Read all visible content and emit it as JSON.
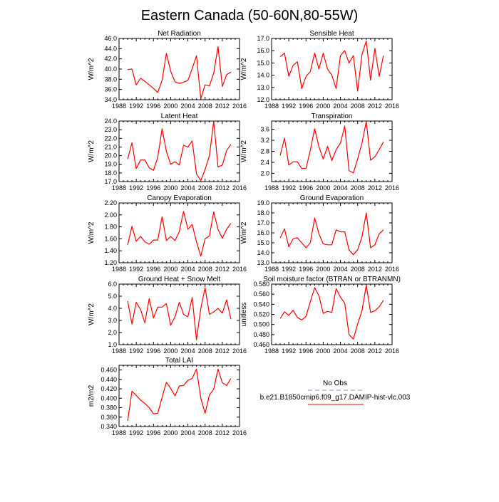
{
  "title": "Eastern Canada (50-60N,80-55W)",
  "colors": {
    "model": "#ff0000",
    "obs": "#8c8cd9"
  },
  "legend": {
    "obs_label": "No Obs",
    "model_label": "b.e21.B1850cmip6.f09_g17.DAMIP-hist-vlc.003"
  },
  "chart_data": [
    {
      "type": "line",
      "title": "Net Radiation",
      "ylabel": "W/m^2",
      "xlim": [
        1988,
        2016
      ],
      "ylim": [
        34,
        46
      ],
      "xticks": [
        1988,
        1992,
        1996,
        2000,
        2004,
        2008,
        2012,
        2016
      ],
      "xtick_labels": [
        "1988",
        "1992",
        "1996",
        "2000",
        "2004",
        "2008",
        "2012",
        "2016"
      ],
      "yticks": [
        34,
        36,
        38,
        40,
        42,
        44,
        46
      ],
      "ytick_labels": [
        "34.0",
        "36.0",
        "38.0",
        "40.0",
        "42.0",
        "44.0",
        "46.0"
      ],
      "x": [
        1990,
        1991,
        1992,
        1993,
        1994,
        1995,
        1996,
        1997,
        1998,
        1999,
        2000,
        2001,
        2002,
        2003,
        2004,
        2005,
        2006,
        2007,
        2008,
        2009,
        2010,
        2011,
        2012,
        2013,
        2014
      ],
      "series": [
        {
          "values": [
            39.9,
            40.0,
            36.9,
            38.2,
            37.6,
            36.9,
            36.2,
            35.4,
            37.8,
            43.1,
            39.6,
            37.5,
            37.2,
            37.4,
            37.8,
            40.1,
            42.6,
            34.2,
            36.9,
            36.7,
            39.2,
            44.4,
            36.6,
            38.9,
            39.4
          ]
        }
      ]
    },
    {
      "type": "line",
      "title": "Sensible Heat",
      "ylabel": "W/m^2",
      "xlim": [
        1988,
        2016
      ],
      "ylim": [
        12,
        17
      ],
      "xticks": [
        1988,
        1992,
        1996,
        2000,
        2004,
        2008,
        2012,
        2016
      ],
      "xtick_labels": [
        "1988",
        "1992",
        "1996",
        "2000",
        "2004",
        "2008",
        "2012",
        "2016"
      ],
      "yticks": [
        12,
        13,
        14,
        15,
        16,
        17
      ],
      "ytick_labels": [
        "12.0",
        "13.0",
        "14.0",
        "15.0",
        "16.0",
        "17.0"
      ],
      "x": [
        1990,
        1991,
        1992,
        1993,
        1994,
        1995,
        1996,
        1997,
        1998,
        1999,
        2000,
        2001,
        2002,
        2003,
        2004,
        2005,
        2006,
        2007,
        2008,
        2009,
        2010,
        2011,
        2012,
        2013,
        2014
      ],
      "series": [
        {
          "values": [
            15.5,
            15.8,
            13.9,
            14.8,
            15.1,
            12.9,
            13.9,
            14.3,
            15.8,
            14.5,
            15.8,
            14.5,
            14.0,
            12.9,
            15.6,
            16.0,
            15.0,
            15.6,
            12.7,
            15.7,
            16.8,
            13.6,
            16.2,
            13.9,
            15.6
          ]
        }
      ]
    },
    {
      "type": "line",
      "title": "Latent Heat",
      "ylabel": "W/m^2",
      "xlim": [
        1988,
        2016
      ],
      "ylim": [
        17,
        24
      ],
      "xticks": [
        1988,
        1992,
        1996,
        2000,
        2004,
        2008,
        2012,
        2016
      ],
      "xtick_labels": [
        "1988",
        "1992",
        "1996",
        "2000",
        "2004",
        "2008",
        "2012",
        "2016"
      ],
      "yticks": [
        17,
        18,
        19,
        20,
        21,
        22,
        23,
        24
      ],
      "ytick_labels": [
        "17.0",
        "18.0",
        "19.0",
        "20.0",
        "21.0",
        "22.0",
        "23.0",
        "24.0"
      ],
      "x": [
        1990,
        1991,
        1992,
        1993,
        1994,
        1995,
        1996,
        1997,
        1998,
        1999,
        2000,
        2001,
        2002,
        2003,
        2004,
        2005,
        2006,
        2007,
        2008,
        2009,
        2010,
        2011,
        2012,
        2013,
        2014
      ],
      "series": [
        {
          "values": [
            19.6,
            21.5,
            18.5,
            19.5,
            19.5,
            18.6,
            18.3,
            19.8,
            23.1,
            20.5,
            19.0,
            19.3,
            18.9,
            21.2,
            21.0,
            21.7,
            17.9,
            17.1,
            18.4,
            20.0,
            24.0,
            18.7,
            18.9,
            20.6,
            21.3
          ]
        }
      ]
    },
    {
      "type": "line",
      "title": "Transpiration",
      "ylabel": "W/m^2",
      "xlim": [
        1988,
        2016
      ],
      "ylim": [
        1.7,
        3.9
      ],
      "xticks": [
        1988,
        1992,
        1996,
        2000,
        2004,
        2008,
        2012,
        2016
      ],
      "xtick_labels": [
        "1988",
        "1992",
        "1996",
        "2000",
        "2004",
        "2008",
        "2012",
        "2016"
      ],
      "yticks": [
        2.0,
        2.4,
        2.8,
        3.2,
        3.6
      ],
      "ytick_labels": [
        "2.0",
        "2.4",
        "2.8",
        "3.2",
        "3.6"
      ],
      "x": [
        1990,
        1991,
        1992,
        1993,
        1994,
        1995,
        1996,
        1997,
        1998,
        1999,
        2000,
        2001,
        2002,
        2003,
        2004,
        2005,
        2006,
        2007,
        2008,
        2009,
        2010,
        2011,
        2012,
        2013,
        2014
      ],
      "series": [
        {
          "values": [
            2.65,
            3.28,
            2.3,
            2.42,
            2.42,
            2.17,
            2.18,
            2.84,
            3.62,
            2.97,
            2.52,
            2.98,
            2.46,
            2.86,
            3.1,
            3.72,
            2.1,
            2.01,
            2.52,
            3.1,
            3.88,
            2.48,
            2.6,
            2.86,
            3.14
          ]
        }
      ]
    },
    {
      "type": "line",
      "title": "Canopy Evaporation",
      "ylabel": "W/m^2",
      "xlim": [
        1988,
        2016
      ],
      "ylim": [
        1.2,
        2.2
      ],
      "xticks": [
        1988,
        1992,
        1996,
        2000,
        2004,
        2008,
        2012,
        2016
      ],
      "xtick_labels": [
        "1988",
        "1992",
        "1996",
        "2000",
        "2004",
        "2008",
        "2012",
        "2016"
      ],
      "yticks": [
        1.2,
        1.4,
        1.6,
        1.8,
        2.0,
        2.2
      ],
      "ytick_labels": [
        "1.20",
        "1.40",
        "1.60",
        "1.80",
        "2.00",
        "2.20"
      ],
      "x": [
        1990,
        1991,
        1992,
        1993,
        1994,
        1995,
        1996,
        1997,
        1998,
        1999,
        2000,
        2001,
        2002,
        2003,
        2004,
        2005,
        2006,
        2007,
        2008,
        2009,
        2010,
        2011,
        2012,
        2013,
        2014
      ],
      "series": [
        {
          "values": [
            1.5,
            1.81,
            1.56,
            1.64,
            1.55,
            1.51,
            1.58,
            1.58,
            1.97,
            1.57,
            1.64,
            1.57,
            1.72,
            2.06,
            1.76,
            1.84,
            1.55,
            1.31,
            1.6,
            1.65,
            2.05,
            1.76,
            1.61,
            1.76,
            1.86
          ]
        }
      ]
    },
    {
      "type": "line",
      "title": "Ground Evaporation",
      "ylabel": "W/m^2",
      "xlim": [
        1988,
        2016
      ],
      "ylim": [
        13,
        19
      ],
      "xticks": [
        1988,
        1992,
        1996,
        2000,
        2004,
        2008,
        2012,
        2016
      ],
      "xtick_labels": [
        "1988",
        "1992",
        "1996",
        "2000",
        "2004",
        "2008",
        "2012",
        "2016"
      ],
      "yticks": [
        13,
        14,
        15,
        16,
        17,
        18,
        19
      ],
      "ytick_labels": [
        "13.0",
        "14.0",
        "15.0",
        "16.0",
        "17.0",
        "18.0",
        "19.0"
      ],
      "x": [
        1990,
        1991,
        1992,
        1993,
        1994,
        1995,
        1996,
        1997,
        1998,
        1999,
        2000,
        2001,
        2002,
        2003,
        2004,
        2005,
        2006,
        2007,
        2008,
        2009,
        2010,
        2011,
        2012,
        2013,
        2014
      ],
      "series": [
        {
          "values": [
            15.5,
            16.4,
            14.6,
            15.4,
            15.5,
            15.0,
            14.5,
            15.0,
            17.5,
            15.9,
            14.9,
            14.8,
            14.8,
            16.3,
            16.1,
            16.1,
            14.3,
            13.8,
            14.3,
            15.6,
            18.0,
            14.5,
            14.8,
            15.9,
            16.3
          ]
        }
      ]
    },
    {
      "type": "line",
      "title": "Ground Heat + Snow Melt",
      "ylabel": "W/m^2",
      "xlim": [
        1988,
        2016
      ],
      "ylim": [
        1,
        6
      ],
      "xticks": [
        1988,
        1992,
        1996,
        2000,
        2004,
        2008,
        2012,
        2016
      ],
      "xtick_labels": [
        "1988",
        "1992",
        "1996",
        "2000",
        "2004",
        "2008",
        "2012",
        "2016"
      ],
      "yticks": [
        1,
        2,
        3,
        4,
        5,
        6
      ],
      "ytick_labels": [
        "1.0",
        "2.0",
        "3.0",
        "4.0",
        "5.0",
        "6.0"
      ],
      "x": [
        1990,
        1991,
        1992,
        1993,
        1994,
        1995,
        1996,
        1997,
        1998,
        1999,
        2000,
        2001,
        2002,
        2003,
        2004,
        2005,
        2006,
        2007,
        2008,
        2009,
        2010,
        2011,
        2012,
        2013,
        2014
      ],
      "series": [
        {
          "values": [
            4.6,
            2.7,
            4.5,
            3.9,
            2.8,
            4.8,
            3.2,
            4.1,
            4.1,
            4.4,
            2.6,
            3.3,
            4.5,
            3.5,
            3.3,
            4.9,
            1.4,
            4.0,
            5.7,
            3.5,
            3.7,
            4.0,
            3.6,
            4.7,
            3.1
          ]
        }
      ]
    },
    {
      "type": "line",
      "title": "Soil moisture factor (BTRAN or BTRANMN)",
      "ylabel": "unitless",
      "xlim": [
        1988,
        2016
      ],
      "ylim": [
        0.46,
        0.58
      ],
      "xticks": [
        1988,
        1992,
        1996,
        2000,
        2004,
        2008,
        2012,
        2016
      ],
      "xtick_labels": [
        "1988",
        "1992",
        "1996",
        "2000",
        "2004",
        "2008",
        "2012",
        "2016"
      ],
      "yticks": [
        0.46,
        0.48,
        0.5,
        0.52,
        0.54,
        0.56,
        0.58
      ],
      "ytick_labels": [
        "0.460",
        "0.480",
        "0.500",
        "0.520",
        "0.540",
        "0.560",
        "0.580"
      ],
      "x": [
        1990,
        1991,
        1992,
        1993,
        1994,
        1995,
        1996,
        1997,
        1998,
        1999,
        2000,
        2001,
        2002,
        2003,
        2004,
        2005,
        2006,
        2007,
        2008,
        2009,
        2010,
        2011,
        2012,
        2013,
        2014
      ],
      "series": [
        {
          "values": [
            0.512,
            0.525,
            0.518,
            0.528,
            0.514,
            0.509,
            0.516,
            0.545,
            0.573,
            0.557,
            0.522,
            0.526,
            0.524,
            0.571,
            0.554,
            0.542,
            0.48,
            0.471,
            0.501,
            0.527,
            0.578,
            0.524,
            0.527,
            0.535,
            0.548
          ]
        }
      ]
    },
    {
      "type": "line",
      "title": "Total LAI",
      "ylabel": "m2/m2",
      "xlim": [
        1988,
        2016
      ],
      "ylim": [
        0.34,
        0.47
      ],
      "xticks": [
        1988,
        1992,
        1996,
        2000,
        2004,
        2008,
        2012,
        2016
      ],
      "xtick_labels": [
        "1988",
        "1992",
        "1996",
        "2000",
        "2004",
        "2008",
        "2012",
        "2016"
      ],
      "yticks": [
        0.34,
        0.36,
        0.38,
        0.4,
        0.42,
        0.44,
        0.46
      ],
      "ytick_labels": [
        "0.340",
        "0.360",
        "0.380",
        "0.400",
        "0.420",
        "0.440",
        "0.460"
      ],
      "x": [
        1990,
        1991,
        1992,
        1993,
        1994,
        1995,
        1996,
        1997,
        1998,
        1999,
        2000,
        2001,
        2002,
        2003,
        2004,
        2005,
        2006,
        2007,
        2008,
        2009,
        2010,
        2011,
        2012,
        2013,
        2014
      ],
      "series": [
        {
          "values": [
            0.352,
            0.415,
            0.406,
            0.396,
            0.389,
            0.38,
            0.367,
            0.368,
            0.402,
            0.434,
            0.421,
            0.405,
            0.426,
            0.427,
            0.438,
            0.442,
            0.462,
            0.4,
            0.368,
            0.407,
            0.419,
            0.462,
            0.433,
            0.427,
            0.442
          ]
        }
      ]
    }
  ]
}
